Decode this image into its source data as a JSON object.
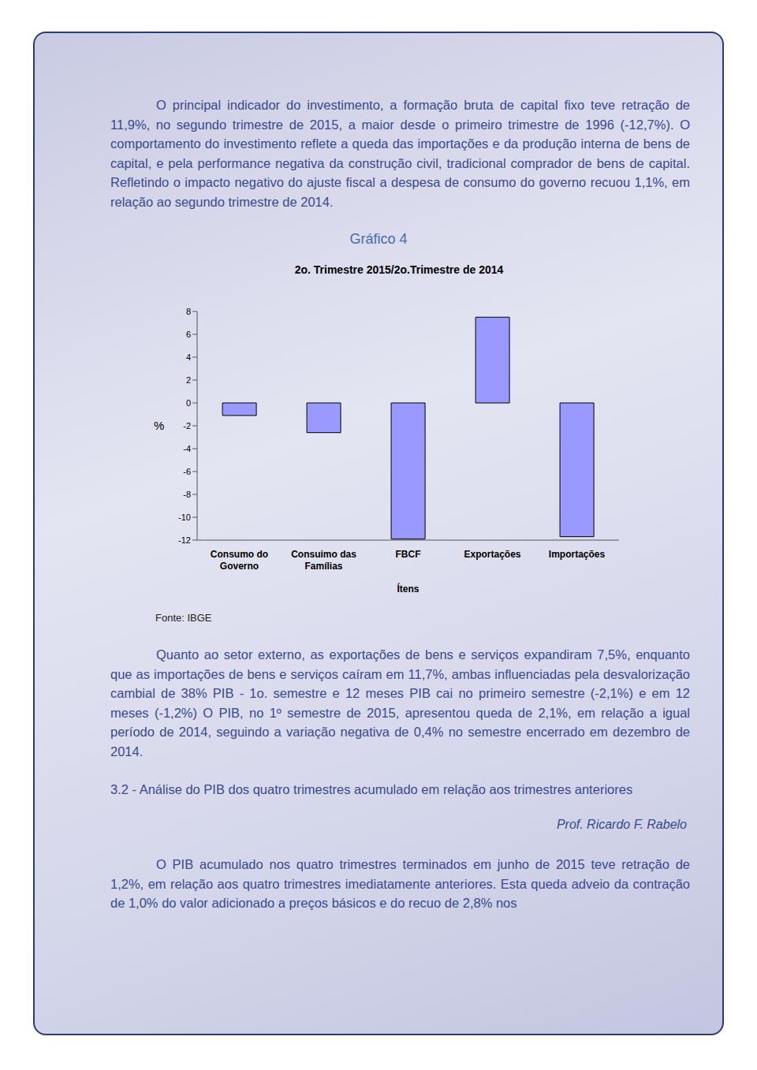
{
  "document": {
    "paragraphs": [
      "O principal  indicador do investimento, a formação bruta de capital fixo teve retração de  11,9%, no segundo trimestre de 2015, a maior desde o primeiro trimestre de 1996 (-12,7%). O comportamento do investimento reflete a queda das importações e da produção interna de bens de capital, e pela performance negativa da construção civil, tradicional comprador de bens de capital. Refletindo o impacto negativo  do ajuste fiscal a despesa de consumo do governo recuou 1,1%, em relação ao segundo trimestre de 2014."
    ],
    "figure_label": "Gráfico 4",
    "source": "Fonte: IBGE",
    "paragraphs_after": [
      "Quanto ao  setor externo, as exportações de bens e serviços expandiram 7,5%, enquanto que as importações de bens e serviços caíram em 11,7%, ambas influenciadas pela desvalorização cambial de 38% PIB - 1o. semestre e 12 meses PIB cai no primeiro semestre (-2,1%) e em 12 meses (-1,2%) O PIB, no 1º semestre de 2015, apresentou queda de 2,1%, em relação a igual período de 2014, seguindo a variação negativa de 0,4% no semestre encerrado em dezembro de 2014."
    ],
    "heading": "3.2 - Análise do PIB  dos quatro trimestres acumulado  em relação aos trimestres anteriores",
    "author": "Prof. Ricardo F. Rabelo",
    "paragraphs_end": [
      "O PIB acumulado nos quatro trimestres terminados em junho de 2015 teve retração de 1,2%, em relação aos quatro trimestres imediatamente anteriores. Esta queda adveio  da contração de 1,0% do valor adicionado a preços básicos e do recuo de 2,8% nos"
    ]
  },
  "chart_data": {
    "type": "bar",
    "title": "2o. Trimestre 2015/2o.Trimestre de 2014",
    "x_label": "Ítens",
    "y_label": "%",
    "categories": [
      "Consumo do Governo",
      "Consuimo das Famílias",
      "FBCF",
      "Exportações",
      "Importações"
    ],
    "values": [
      -1.1,
      -2.6,
      -11.9,
      7.5,
      -11.7
    ],
    "color": "#9999ff",
    "ylim": [
      -12,
      8
    ],
    "yticks": [
      -12,
      -10,
      -8,
      -6,
      -4,
      -2,
      0,
      2,
      4,
      6,
      8
    ],
    "grid": false
  }
}
